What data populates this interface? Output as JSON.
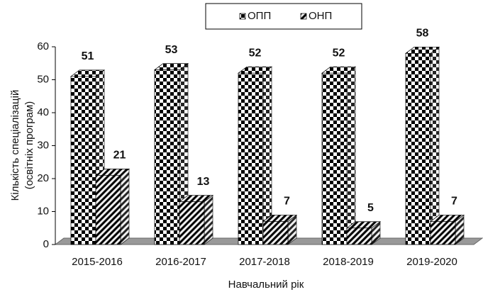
{
  "chart_data": {
    "type": "bar3d",
    "y_label": [
      "Кількість спеціалізацій",
      "(освітніх програм)"
    ],
    "x_label": "Навчальний рік",
    "categories": [
      "2015-2016",
      "2016-2017",
      "2017-2018",
      "2018-2019",
      "2019-2020"
    ],
    "series": [
      {
        "name": "ОПП",
        "color": "#000000",
        "pattern": "checker",
        "values": [
          51,
          53,
          52,
          52,
          58
        ]
      },
      {
        "name": "ОНП",
        "color": "#333333",
        "pattern": "hatch",
        "values": [
          21,
          13,
          7,
          5,
          7
        ]
      }
    ],
    "ylim": [
      0,
      60
    ],
    "yticks": [
      0,
      10,
      20,
      30,
      40,
      50,
      60
    ]
  }
}
